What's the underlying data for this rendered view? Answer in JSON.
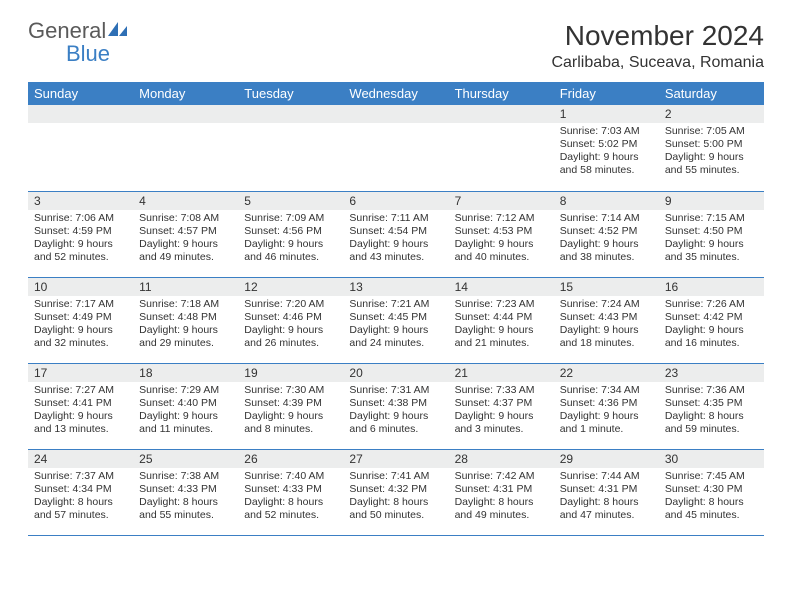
{
  "brand": {
    "name1": "General",
    "name2": "Blue"
  },
  "title": "November 2024",
  "location": "Carlibaba, Suceava, Romania",
  "colors": {
    "header_bg": "#3b7fc4",
    "header_fg": "#ffffff",
    "daynum_bg": "#eceded",
    "text": "#333333",
    "rule": "#3b7fc4",
    "page_bg": "#ffffff",
    "logo_gray": "#5a5a5a",
    "logo_blue": "#3b7fc4"
  },
  "typography": {
    "title_fontsize": 28,
    "location_fontsize": 16,
    "header_fontsize": 13,
    "daynum_fontsize": 12,
    "body_fontsize": 10.5
  },
  "weekdays": [
    "Sunday",
    "Monday",
    "Tuesday",
    "Wednesday",
    "Thursday",
    "Friday",
    "Saturday"
  ],
  "weeks": [
    [
      {
        "n": "",
        "sunrise": "",
        "sunset": "",
        "daylight": ""
      },
      {
        "n": "",
        "sunrise": "",
        "sunset": "",
        "daylight": ""
      },
      {
        "n": "",
        "sunrise": "",
        "sunset": "",
        "daylight": ""
      },
      {
        "n": "",
        "sunrise": "",
        "sunset": "",
        "daylight": ""
      },
      {
        "n": "",
        "sunrise": "",
        "sunset": "",
        "daylight": ""
      },
      {
        "n": "1",
        "sunrise": "Sunrise: 7:03 AM",
        "sunset": "Sunset: 5:02 PM",
        "daylight": "Daylight: 9 hours and 58 minutes."
      },
      {
        "n": "2",
        "sunrise": "Sunrise: 7:05 AM",
        "sunset": "Sunset: 5:00 PM",
        "daylight": "Daylight: 9 hours and 55 minutes."
      }
    ],
    [
      {
        "n": "3",
        "sunrise": "Sunrise: 7:06 AM",
        "sunset": "Sunset: 4:59 PM",
        "daylight": "Daylight: 9 hours and 52 minutes."
      },
      {
        "n": "4",
        "sunrise": "Sunrise: 7:08 AM",
        "sunset": "Sunset: 4:57 PM",
        "daylight": "Daylight: 9 hours and 49 minutes."
      },
      {
        "n": "5",
        "sunrise": "Sunrise: 7:09 AM",
        "sunset": "Sunset: 4:56 PM",
        "daylight": "Daylight: 9 hours and 46 minutes."
      },
      {
        "n": "6",
        "sunrise": "Sunrise: 7:11 AM",
        "sunset": "Sunset: 4:54 PM",
        "daylight": "Daylight: 9 hours and 43 minutes."
      },
      {
        "n": "7",
        "sunrise": "Sunrise: 7:12 AM",
        "sunset": "Sunset: 4:53 PM",
        "daylight": "Daylight: 9 hours and 40 minutes."
      },
      {
        "n": "8",
        "sunrise": "Sunrise: 7:14 AM",
        "sunset": "Sunset: 4:52 PM",
        "daylight": "Daylight: 9 hours and 38 minutes."
      },
      {
        "n": "9",
        "sunrise": "Sunrise: 7:15 AM",
        "sunset": "Sunset: 4:50 PM",
        "daylight": "Daylight: 9 hours and 35 minutes."
      }
    ],
    [
      {
        "n": "10",
        "sunrise": "Sunrise: 7:17 AM",
        "sunset": "Sunset: 4:49 PM",
        "daylight": "Daylight: 9 hours and 32 minutes."
      },
      {
        "n": "11",
        "sunrise": "Sunrise: 7:18 AM",
        "sunset": "Sunset: 4:48 PM",
        "daylight": "Daylight: 9 hours and 29 minutes."
      },
      {
        "n": "12",
        "sunrise": "Sunrise: 7:20 AM",
        "sunset": "Sunset: 4:46 PM",
        "daylight": "Daylight: 9 hours and 26 minutes."
      },
      {
        "n": "13",
        "sunrise": "Sunrise: 7:21 AM",
        "sunset": "Sunset: 4:45 PM",
        "daylight": "Daylight: 9 hours and 24 minutes."
      },
      {
        "n": "14",
        "sunrise": "Sunrise: 7:23 AM",
        "sunset": "Sunset: 4:44 PM",
        "daylight": "Daylight: 9 hours and 21 minutes."
      },
      {
        "n": "15",
        "sunrise": "Sunrise: 7:24 AM",
        "sunset": "Sunset: 4:43 PM",
        "daylight": "Daylight: 9 hours and 18 minutes."
      },
      {
        "n": "16",
        "sunrise": "Sunrise: 7:26 AM",
        "sunset": "Sunset: 4:42 PM",
        "daylight": "Daylight: 9 hours and 16 minutes."
      }
    ],
    [
      {
        "n": "17",
        "sunrise": "Sunrise: 7:27 AM",
        "sunset": "Sunset: 4:41 PM",
        "daylight": "Daylight: 9 hours and 13 minutes."
      },
      {
        "n": "18",
        "sunrise": "Sunrise: 7:29 AM",
        "sunset": "Sunset: 4:40 PM",
        "daylight": "Daylight: 9 hours and 11 minutes."
      },
      {
        "n": "19",
        "sunrise": "Sunrise: 7:30 AM",
        "sunset": "Sunset: 4:39 PM",
        "daylight": "Daylight: 9 hours and 8 minutes."
      },
      {
        "n": "20",
        "sunrise": "Sunrise: 7:31 AM",
        "sunset": "Sunset: 4:38 PM",
        "daylight": "Daylight: 9 hours and 6 minutes."
      },
      {
        "n": "21",
        "sunrise": "Sunrise: 7:33 AM",
        "sunset": "Sunset: 4:37 PM",
        "daylight": "Daylight: 9 hours and 3 minutes."
      },
      {
        "n": "22",
        "sunrise": "Sunrise: 7:34 AM",
        "sunset": "Sunset: 4:36 PM",
        "daylight": "Daylight: 9 hours and 1 minute."
      },
      {
        "n": "23",
        "sunrise": "Sunrise: 7:36 AM",
        "sunset": "Sunset: 4:35 PM",
        "daylight": "Daylight: 8 hours and 59 minutes."
      }
    ],
    [
      {
        "n": "24",
        "sunrise": "Sunrise: 7:37 AM",
        "sunset": "Sunset: 4:34 PM",
        "daylight": "Daylight: 8 hours and 57 minutes."
      },
      {
        "n": "25",
        "sunrise": "Sunrise: 7:38 AM",
        "sunset": "Sunset: 4:33 PM",
        "daylight": "Daylight: 8 hours and 55 minutes."
      },
      {
        "n": "26",
        "sunrise": "Sunrise: 7:40 AM",
        "sunset": "Sunset: 4:33 PM",
        "daylight": "Daylight: 8 hours and 52 minutes."
      },
      {
        "n": "27",
        "sunrise": "Sunrise: 7:41 AM",
        "sunset": "Sunset: 4:32 PM",
        "daylight": "Daylight: 8 hours and 50 minutes."
      },
      {
        "n": "28",
        "sunrise": "Sunrise: 7:42 AM",
        "sunset": "Sunset: 4:31 PM",
        "daylight": "Daylight: 8 hours and 49 minutes."
      },
      {
        "n": "29",
        "sunrise": "Sunrise: 7:44 AM",
        "sunset": "Sunset: 4:31 PM",
        "daylight": "Daylight: 8 hours and 47 minutes."
      },
      {
        "n": "30",
        "sunrise": "Sunrise: 7:45 AM",
        "sunset": "Sunset: 4:30 PM",
        "daylight": "Daylight: 8 hours and 45 minutes."
      }
    ]
  ]
}
